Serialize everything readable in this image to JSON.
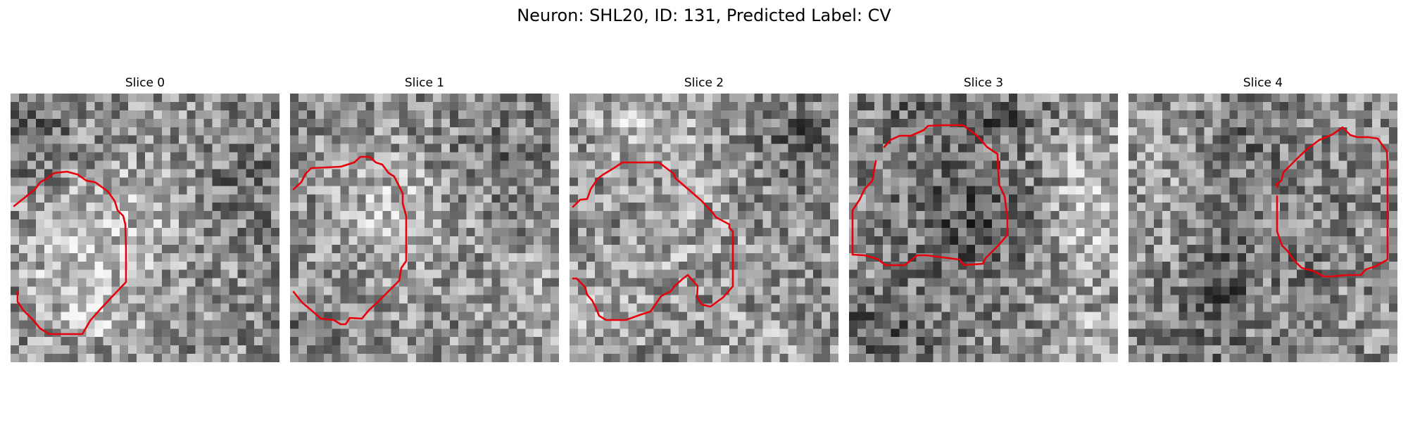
{
  "figure": {
    "title": "Neuron: SHL20, ID: 131, Predicted Label: CV",
    "contour_color": "#e8000b"
  },
  "panels": [
    {
      "title": "Slice 0"
    },
    {
      "title": "Slice 1"
    },
    {
      "title": "Slice 2"
    },
    {
      "title": "Slice 3"
    },
    {
      "title": "Slice 4"
    }
  ]
}
